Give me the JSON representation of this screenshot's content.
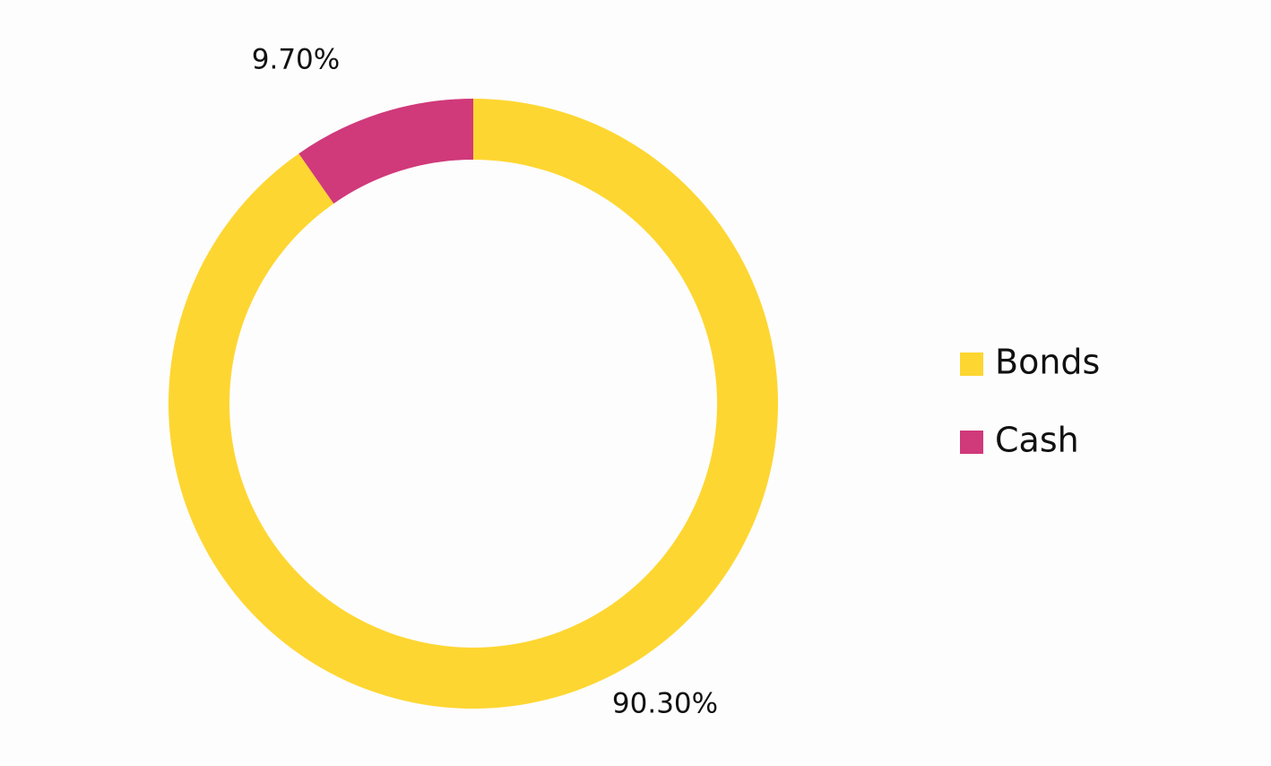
{
  "chart_data": {
    "type": "donut",
    "categories": [
      "Bonds",
      "Cash"
    ],
    "values": [
      90.3,
      9.7
    ],
    "value_labels": [
      "90.30%",
      "9.70%"
    ],
    "colors": [
      "#fed631",
      "#d0397a"
    ],
    "legend": "right"
  }
}
